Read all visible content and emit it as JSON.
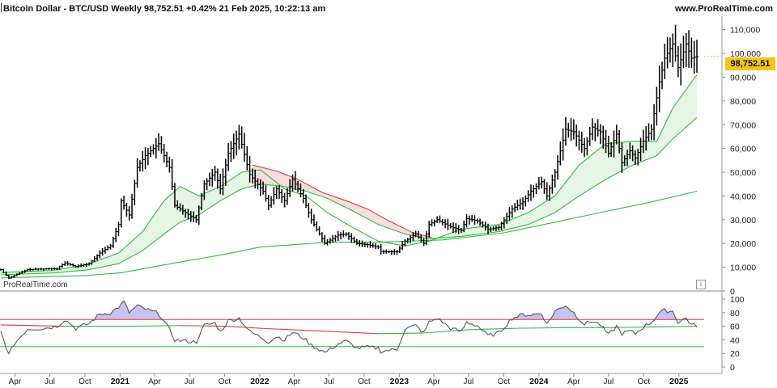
{
  "header": {
    "title": "Bitcoin Dollar - BTC/USD Weekly 98,752.51 +0.42% 21 Feb 2025, 10:22:13 am",
    "site": "www.ProRealTime.com",
    "watermark": "ProRealTime.com",
    "info_glyph": "i"
  },
  "chart_data": [
    {
      "type": "candlestick",
      "title": "Bitcoin Dollar - BTC/USD Weekly",
      "last_price": 98752.51,
      "last_price_label": "98,752.51",
      "change": "+0.42%",
      "timestamp": "21 Feb 2025, 10:22:13 am",
      "ylim": [
        0,
        115000
      ],
      "yticks": [
        0,
        10000,
        20000,
        30000,
        40000,
        50000,
        60000,
        70000,
        80000,
        90000,
        100000,
        110000
      ],
      "ytick_labels": [
        "0",
        "10,000",
        "20,000",
        "30,000",
        "40,000",
        "50,000",
        "60,000",
        "70,000",
        "80,000",
        "90,000",
        "100,000",
        "110,000"
      ],
      "x_ticks": [
        "Apr",
        "Jul",
        "Oct",
        "2021",
        "Apr",
        "Jul",
        "Oct",
        "2022",
        "Apr",
        "Jul",
        "Oct",
        "2023",
        "Apr",
        "Jul",
        "Oct",
        "2024",
        "Apr",
        "Jul",
        "Oct",
        "2025"
      ],
      "x_tick_dates": [
        "2020-04-01",
        "2020-07-01",
        "2020-10-01",
        "2021-01-01",
        "2021-04-01",
        "2021-07-01",
        "2021-10-01",
        "2022-01-01",
        "2022-04-01",
        "2022-07-01",
        "2022-10-01",
        "2023-01-01",
        "2023-04-01",
        "2023-07-01",
        "2023-10-01",
        "2024-01-01",
        "2024-04-01",
        "2024-07-01",
        "2024-10-01",
        "2025-01-01"
      ],
      "x_range": [
        "2020-02-22",
        "2025-03-08"
      ],
      "price_path": [
        [
          "2020-02-24",
          9000
        ],
        [
          "2020-03-16",
          5500
        ],
        [
          "2020-03-30",
          6500
        ],
        [
          "2020-05-04",
          9000
        ],
        [
          "2020-07-20",
          9500
        ],
        [
          "2020-08-10",
          11800
        ],
        [
          "2020-09-07",
          10300
        ],
        [
          "2020-10-12",
          11500
        ],
        [
          "2020-11-09",
          16000
        ],
        [
          "2020-12-07",
          19000
        ],
        [
          "2020-12-28",
          28000
        ],
        [
          "2021-01-04",
          38000
        ],
        [
          "2021-01-25",
          32000
        ],
        [
          "2021-02-15",
          52000
        ],
        [
          "2021-03-08",
          57000
        ],
        [
          "2021-04-12",
          62000
        ],
        [
          "2021-05-10",
          52000
        ],
        [
          "2021-05-24",
          36000
        ],
        [
          "2021-06-21",
          33000
        ],
        [
          "2021-07-19",
          30000
        ],
        [
          "2021-08-09",
          45000
        ],
        [
          "2021-09-06",
          50000
        ],
        [
          "2021-09-20",
          43000
        ],
        [
          "2021-10-11",
          58000
        ],
        [
          "2021-11-08",
          66000
        ],
        [
          "2021-12-06",
          49000
        ],
        [
          "2022-01-10",
          42000
        ],
        [
          "2022-01-24",
          36000
        ],
        [
          "2022-02-14",
          43000
        ],
        [
          "2022-03-07",
          38000
        ],
        [
          "2022-03-28",
          47000
        ],
        [
          "2022-04-25",
          39000
        ],
        [
          "2022-05-16",
          30000
        ],
        [
          "2022-06-13",
          22000
        ],
        [
          "2022-06-20",
          20000
        ],
        [
          "2022-07-25",
          23500
        ],
        [
          "2022-08-15",
          24000
        ],
        [
          "2022-09-12",
          20000
        ],
        [
          "2022-10-10",
          19500
        ],
        [
          "2022-11-07",
          18500
        ],
        [
          "2022-11-14",
          16500
        ],
        [
          "2022-12-26",
          16500
        ],
        [
          "2023-01-16",
          21000
        ],
        [
          "2023-02-13",
          24000
        ],
        [
          "2023-03-06",
          20000
        ],
        [
          "2023-03-20",
          28000
        ],
        [
          "2023-04-10",
          30000
        ],
        [
          "2023-05-15",
          27000
        ],
        [
          "2023-06-12",
          25500
        ],
        [
          "2023-06-26",
          30500
        ],
        [
          "2023-07-24",
          29500
        ],
        [
          "2023-08-21",
          26000
        ],
        [
          "2023-09-18",
          26800
        ],
        [
          "2023-10-23",
          34500
        ],
        [
          "2023-11-20",
          37500
        ],
        [
          "2023-12-11",
          42000
        ],
        [
          "2024-01-08",
          46000
        ],
        [
          "2024-01-22",
          40000
        ],
        [
          "2024-02-12",
          50000
        ],
        [
          "2024-03-11",
          68000
        ],
        [
          "2024-04-01",
          67000
        ],
        [
          "2024-04-29",
          60000
        ],
        [
          "2024-05-20",
          69000
        ],
        [
          "2024-06-10",
          67000
        ],
        [
          "2024-07-01",
          58000
        ],
        [
          "2024-07-22",
          66000
        ],
        [
          "2024-08-05",
          54000
        ],
        [
          "2024-08-26",
          59000
        ],
        [
          "2024-09-09",
          56000
        ],
        [
          "2024-09-30",
          63000
        ],
        [
          "2024-10-21",
          68000
        ],
        [
          "2024-11-11",
          88000
        ],
        [
          "2024-11-25",
          98000
        ],
        [
          "2024-12-16",
          104000
        ],
        [
          "2024-12-30",
          94000
        ],
        [
          "2025-01-20",
          104000
        ],
        [
          "2025-02-03",
          98000
        ],
        [
          "2025-02-17",
          98752
        ]
      ],
      "moving_averages": [
        {
          "type": "sma",
          "color": "#2dbd3a",
          "points": [
            [
              "2020-02-24",
              7800
            ],
            [
              "2020-07-06",
              8600
            ],
            [
              "2020-10-05",
              11000
            ],
            [
              "2020-12-28",
              16000
            ],
            [
              "2021-03-01",
              25000
            ],
            [
              "2021-04-26",
              38000
            ],
            [
              "2021-06-07",
              44000
            ],
            [
              "2021-07-26",
              40000
            ],
            [
              "2021-09-20",
              44000
            ],
            [
              "2021-11-15",
              50000
            ],
            [
              "2022-01-03",
              51000
            ],
            [
              "2022-03-07",
              43000
            ],
            [
              "2022-05-02",
              40000
            ],
            [
              "2022-06-27",
              33000
            ],
            [
              "2022-08-29",
              27000
            ],
            [
              "2022-11-07",
              21000
            ],
            [
              "2023-01-16",
              19000
            ],
            [
              "2023-03-20",
              21000
            ],
            [
              "2023-06-12",
              26000
            ],
            [
              "2023-09-18",
              28000
            ],
            [
              "2023-12-04",
              33000
            ],
            [
              "2024-02-12",
              40000
            ],
            [
              "2024-04-15",
              53000
            ],
            [
              "2024-06-24",
              62000
            ],
            [
              "2024-09-02",
              63000
            ],
            [
              "2024-11-04",
              63000
            ],
            [
              "2024-12-16",
              77000
            ],
            [
              "2025-02-17",
              91000
            ]
          ]
        },
        {
          "type": "sma",
          "color": "#2dbd3a",
          "points": [
            [
              "2020-02-24",
              6800
            ],
            [
              "2020-07-06",
              7600
            ],
            [
              "2020-10-05",
              8800
            ],
            [
              "2020-12-28",
              11500
            ],
            [
              "2021-03-01",
              17000
            ],
            [
              "2021-04-26",
              24000
            ],
            [
              "2021-06-07",
              29000
            ],
            [
              "2021-07-26",
              32000
            ],
            [
              "2021-09-20",
              38000
            ],
            [
              "2021-11-15",
              43000
            ],
            [
              "2022-01-03",
              45000
            ],
            [
              "2022-03-07",
              44000
            ],
            [
              "2022-05-02",
              42000
            ],
            [
              "2022-06-27",
              39000
            ],
            [
              "2022-08-29",
              34000
            ],
            [
              "2022-11-07",
              28000
            ],
            [
              "2023-01-16",
              24000
            ],
            [
              "2023-03-20",
              22000
            ],
            [
              "2023-06-12",
              23000
            ],
            [
              "2023-09-18",
              25000
            ],
            [
              "2023-12-04",
              28000
            ],
            [
              "2024-02-12",
              33000
            ],
            [
              "2024-04-15",
              40000
            ],
            [
              "2024-06-24",
              47000
            ],
            [
              "2024-09-02",
              53000
            ],
            [
              "2024-11-04",
              57000
            ],
            [
              "2024-12-16",
              64000
            ],
            [
              "2025-02-17",
              73000
            ]
          ]
        },
        {
          "type": "sma",
          "color": "#2dbd3a",
          "points": [
            [
              "2020-02-24",
              5500
            ],
            [
              "2020-10-05",
              6500
            ],
            [
              "2021-01-04",
              7700
            ],
            [
              "2021-04-26",
              11000
            ],
            [
              "2021-10-04",
              15500
            ],
            [
              "2022-01-03",
              18500
            ],
            [
              "2022-06-27",
              20500
            ],
            [
              "2022-11-07",
              20500
            ],
            [
              "2023-04-24",
              21500
            ],
            [
              "2023-10-02",
              24500
            ],
            [
              "2024-02-12",
              29000
            ],
            [
              "2024-06-24",
              33500
            ],
            [
              "2024-10-07",
              37000
            ],
            [
              "2025-02-17",
              42000
            ]
          ]
        },
        {
          "type": "sma",
          "color": "#e03a3a",
          "points": [
            [
              "2021-12-13",
              53000
            ],
            [
              "2022-02-14",
              50500
            ],
            [
              "2022-04-11",
              47000
            ],
            [
              "2022-06-13",
              41500
            ],
            [
              "2022-08-15",
              38000
            ],
            [
              "2022-10-10",
              34500
            ],
            [
              "2022-12-05",
              29500
            ],
            [
              "2023-02-06",
              24500
            ],
            [
              "2023-03-27",
              22500
            ]
          ]
        }
      ]
    },
    {
      "type": "line",
      "title": "",
      "ylim": [
        0,
        105
      ],
      "yticks": [
        0,
        20,
        40,
        60,
        80,
        100
      ],
      "ytick_labels": [
        "0",
        "20",
        "40",
        "60",
        "80",
        "100"
      ],
      "overbought": 70,
      "oversold": 30,
      "rsi_path": [
        [
          "2020-02-24",
          52
        ],
        [
          "2020-03-16",
          18
        ],
        [
          "2020-03-30",
          34
        ],
        [
          "2020-05-04",
          56
        ],
        [
          "2020-06-15",
          57
        ],
        [
          "2020-07-20",
          60
        ],
        [
          "2020-08-10",
          70
        ],
        [
          "2020-09-07",
          57
        ],
        [
          "2020-10-12",
          64
        ],
        [
          "2020-11-09",
          78
        ],
        [
          "2020-12-07",
          80
        ],
        [
          "2020-12-28",
          88
        ],
        [
          "2021-01-11",
          96
        ],
        [
          "2021-01-25",
          80
        ],
        [
          "2021-02-15",
          90
        ],
        [
          "2021-03-08",
          85
        ],
        [
          "2021-04-12",
          79
        ],
        [
          "2021-05-10",
          55
        ],
        [
          "2021-05-24",
          40
        ],
        [
          "2021-06-21",
          38
        ],
        [
          "2021-07-19",
          37
        ],
        [
          "2021-08-09",
          61
        ],
        [
          "2021-09-06",
          65
        ],
        [
          "2021-09-20",
          52
        ],
        [
          "2021-10-11",
          68
        ],
        [
          "2021-11-08",
          72
        ],
        [
          "2021-12-06",
          52
        ],
        [
          "2022-01-10",
          42
        ],
        [
          "2022-01-24",
          37
        ],
        [
          "2022-02-14",
          45
        ],
        [
          "2022-03-07",
          40
        ],
        [
          "2022-03-28",
          51
        ],
        [
          "2022-04-25",
          43
        ],
        [
          "2022-05-16",
          32
        ],
        [
          "2022-06-13",
          24
        ],
        [
          "2022-06-20",
          21
        ],
        [
          "2022-07-25",
          34
        ],
        [
          "2022-08-15",
          38
        ],
        [
          "2022-09-12",
          28
        ],
        [
          "2022-10-10",
          29
        ],
        [
          "2022-11-07",
          28
        ],
        [
          "2022-11-14",
          23
        ],
        [
          "2022-12-26",
          26
        ],
        [
          "2023-01-16",
          56
        ],
        [
          "2023-02-13",
          61
        ],
        [
          "2023-03-06",
          50
        ],
        [
          "2023-03-20",
          66
        ],
        [
          "2023-04-10",
          72
        ],
        [
          "2023-05-15",
          57
        ],
        [
          "2023-06-12",
          52
        ],
        [
          "2023-06-26",
          66
        ],
        [
          "2023-07-24",
          61
        ],
        [
          "2023-08-21",
          46
        ],
        [
          "2023-09-18",
          50
        ],
        [
          "2023-10-23",
          72
        ],
        [
          "2023-11-20",
          77
        ],
        [
          "2023-12-11",
          77
        ],
        [
          "2024-01-08",
          79
        ],
        [
          "2024-01-22",
          63
        ],
        [
          "2024-02-12",
          82
        ],
        [
          "2024-03-11",
          91
        ],
        [
          "2024-04-01",
          80
        ],
        [
          "2024-04-29",
          63
        ],
        [
          "2024-05-20",
          68
        ],
        [
          "2024-06-10",
          62
        ],
        [
          "2024-07-01",
          47
        ],
        [
          "2024-07-22",
          60
        ],
        [
          "2024-08-05",
          49
        ],
        [
          "2024-08-26",
          53
        ],
        [
          "2024-09-09",
          49
        ],
        [
          "2024-09-30",
          59
        ],
        [
          "2024-10-21",
          66
        ],
        [
          "2024-11-11",
          80
        ],
        [
          "2024-11-25",
          83
        ],
        [
          "2024-12-16",
          82
        ],
        [
          "2024-12-30",
          66
        ],
        [
          "2025-01-20",
          72
        ],
        [
          "2025-02-03",
          62
        ],
        [
          "2025-02-17",
          61
        ]
      ],
      "rsi_ma_path": [
        [
          "2020-02-24",
          62
        ],
        [
          "2020-08-03",
          60
        ],
        [
          "2021-02-01",
          60
        ],
        [
          "2021-06-07",
          61
        ],
        [
          "2021-10-04",
          60
        ],
        [
          "2022-01-03",
          57
        ],
        [
          "2022-06-06",
          53
        ],
        [
          "2022-11-07",
          49
        ],
        [
          "2023-03-06",
          50
        ],
        [
          "2023-07-03",
          55
        ],
        [
          "2023-11-06",
          57
        ],
        [
          "2024-03-04",
          58
        ],
        [
          "2024-07-01",
          58
        ],
        [
          "2024-11-04",
          59
        ],
        [
          "2025-02-17",
          60
        ]
      ]
    }
  ],
  "colors": {
    "bars": "#000000",
    "ma_green": "#2dbd3a",
    "ma_red": "#e03a3a",
    "fill_green": "#e6f5e6",
    "fill_red": "#f6dede",
    "rsi_line": "#7a7a88",
    "rsi_fill": "#c8c2f0",
    "price_tag_bg": "#f5c518"
  }
}
